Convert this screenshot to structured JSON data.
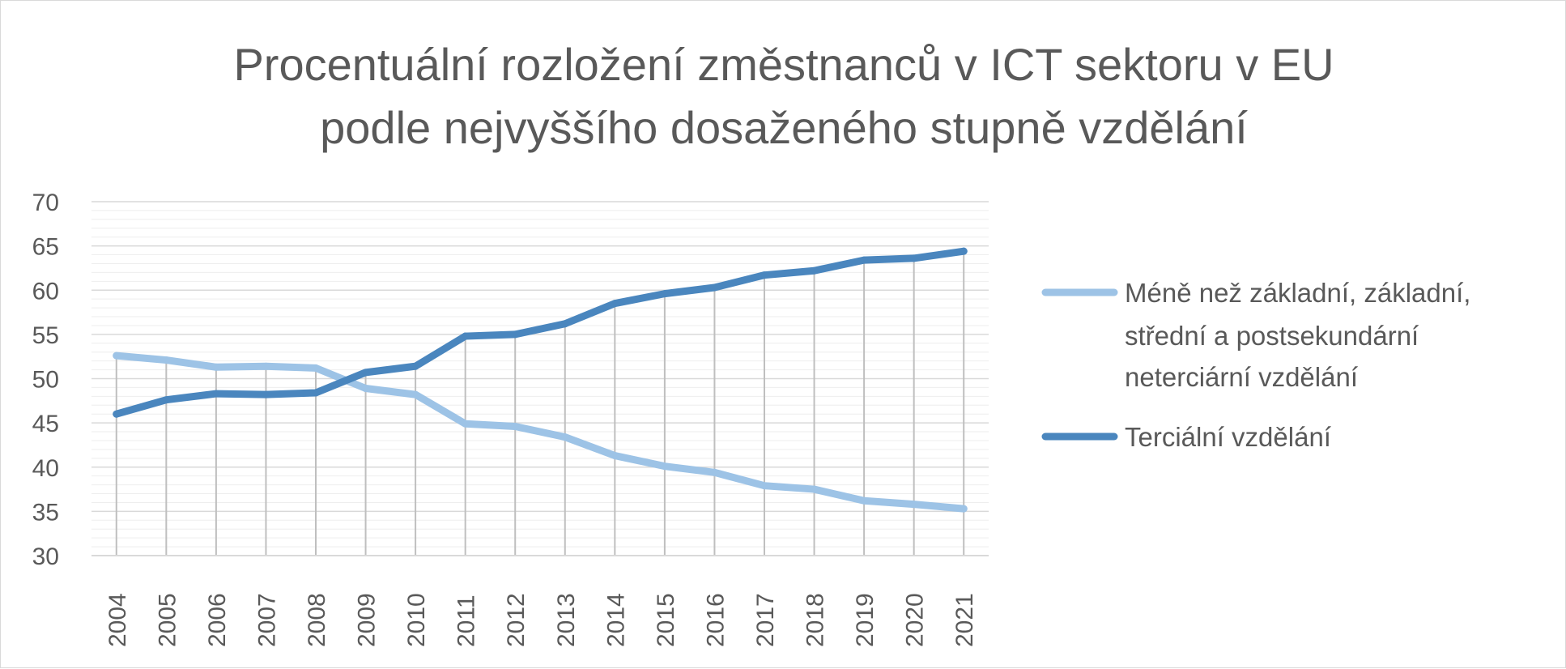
{
  "chart_data": {
    "type": "line",
    "title": "Procentuální rozložení změstnanců v ICT sektoru v EU podle nejvyššího dosaženého stupně vzdělání",
    "title_lines": [
      "Procentuální rozložení změstnanců v ICT sektoru v EU",
      "podle nejvyššího dosaženého stupně vzdělání"
    ],
    "xlabel": "",
    "ylabel": "",
    "ylim": [
      30,
      70
    ],
    "ytick_step": 5,
    "yticks": [
      "30",
      "35",
      "40",
      "45",
      "50",
      "55",
      "60",
      "65",
      "70"
    ],
    "categories": [
      "2004",
      "2005",
      "2006",
      "2007",
      "2008",
      "2009",
      "2010",
      "2011",
      "2012",
      "2013",
      "2014",
      "2015",
      "2016",
      "2017",
      "2018",
      "2019",
      "2020",
      "2021"
    ],
    "grid": true,
    "legend_position": "right",
    "series": [
      {
        "name": "Méně než základní, základní, střední a postsekundární neterciární vzdělání",
        "legend_lines": [
          "Méně než základní, základní,",
          "střední a postsekundární",
          "neterciární vzdělání"
        ],
        "color": "#9dc3e6",
        "values": [
          52.6,
          52.1,
          51.3,
          51.4,
          51.2,
          48.9,
          48.2,
          44.9,
          44.6,
          43.4,
          41.3,
          40.1,
          39.4,
          37.9,
          37.5,
          36.2,
          35.8,
          35.3
        ]
      },
      {
        "name": "Terciální vzdělání",
        "legend_lines": [
          "Terciální vzdělání"
        ],
        "color": "#4a86be",
        "values": [
          46.0,
          47.6,
          48.3,
          48.2,
          48.4,
          50.7,
          51.4,
          54.8,
          55.0,
          56.2,
          58.5,
          59.6,
          60.3,
          61.7,
          62.2,
          63.4,
          63.6,
          64.4
        ]
      }
    ]
  }
}
